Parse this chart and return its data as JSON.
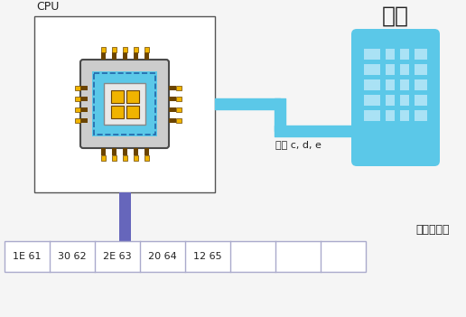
{
  "cpu_label": "CPU",
  "keyboard_label": "键盘",
  "buffer_label": "键盘缓冲区",
  "arrow_label": "输入 c, d, e",
  "buffer_cells": [
    "1E 61",
    "30 62",
    "2E 63",
    "20 64",
    "12 65",
    "",
    "",
    ""
  ],
  "cpu_box_color": "#ffffff",
  "cpu_box_edge": "#555555",
  "chip_outer_color": "#4a4a4a",
  "chip_outer_light": "#cccccc",
  "chip_inner_color": "#5bc8e8",
  "chip_pin_color": "#f0b400",
  "chip_pin_edge": "#6b4400",
  "chip_square_color": "#f0b400",
  "chip_square_edge": "#6b4400",
  "chip_core_color": "#e8e8e8",
  "keyboard_color": "#5bc8e8",
  "keyboard_fill": "#5bc8e8",
  "keyboard_key_fill": "#aae2f5",
  "arrow_color": "#5bc8e8",
  "connector_color": "#6666bb",
  "buffer_border": "#aaaacc",
  "buffer_fill": "#ffffff",
  "bg_color": "#f5f5f5",
  "text_color": "#222222"
}
